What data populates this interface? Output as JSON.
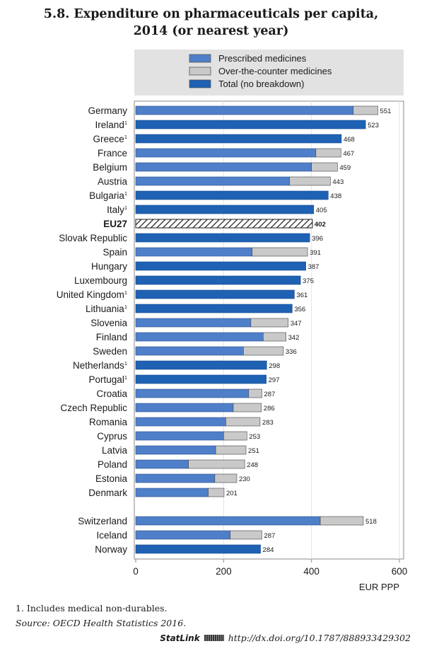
{
  "title": {
    "line1": "5.8. Expenditure on pharmaceuticals per capita,",
    "line2": "2014 (or nearest year)"
  },
  "colors": {
    "prescribed": "#4f7fc9",
    "otc": "#c9c9c9",
    "total": "#1f62b4",
    "legend_bg": "#e2e2e2"
  },
  "chart_data": {
    "type": "bar",
    "orientation": "horizontal",
    "stacked": true,
    "xlabel": "EUR PPP",
    "xlim": [
      0,
      600
    ],
    "xticks": [
      0,
      200,
      400,
      600
    ],
    "legend": {
      "placement": "top",
      "entries": [
        {
          "key": "prescribed",
          "label": "Prescribed medicines"
        },
        {
          "key": "otc",
          "label": "Over-the-counter medicines"
        },
        {
          "key": "total",
          "label": "Total (no breakdown)"
        }
      ]
    },
    "groups": [
      {
        "name": "main",
        "bars": [
          {
            "label": "Germany",
            "note": "",
            "total": 551,
            "prescribed": 495,
            "otc": 56
          },
          {
            "label": "Ireland",
            "note": "1",
            "total": 523
          },
          {
            "label": "Greece",
            "note": "1",
            "total": 468
          },
          {
            "label": "France",
            "note": "",
            "total": 467,
            "prescribed": 410,
            "otc": 57
          },
          {
            "label": "Belgium",
            "note": "",
            "total": 459,
            "prescribed": 400,
            "otc": 59
          },
          {
            "label": "Austria",
            "note": "",
            "total": 443,
            "prescribed": 350,
            "otc": 93
          },
          {
            "label": "Bulgaria",
            "note": "1",
            "total": 438
          },
          {
            "label": "Italy",
            "note": "1",
            "total": 405
          },
          {
            "label": "EU27",
            "note": "",
            "total": 402,
            "hatched": true,
            "bold": true
          },
          {
            "label": "Slovak Republic",
            "note": "",
            "total": 396
          },
          {
            "label": "Spain",
            "note": "",
            "total": 391,
            "prescribed": 265,
            "otc": 126
          },
          {
            "label": "Hungary",
            "note": "",
            "total": 387
          },
          {
            "label": "Luxembourg",
            "note": "",
            "total": 375
          },
          {
            "label": "United Kingdom",
            "note": "1",
            "total": 361
          },
          {
            "label": "Lithuania",
            "note": "1",
            "total": 356
          },
          {
            "label": "Slovenia",
            "note": "",
            "total": 347,
            "prescribed": 262,
            "otc": 85
          },
          {
            "label": "Finland",
            "note": "",
            "total": 342,
            "prescribed": 290,
            "otc": 52
          },
          {
            "label": "Sweden",
            "note": "",
            "total": 336,
            "prescribed": 245,
            "otc": 91
          },
          {
            "label": "Netherlands",
            "note": "1",
            "total": 298
          },
          {
            "label": "Portugal",
            "note": "1",
            "total": 297
          },
          {
            "label": "Croatia",
            "note": "",
            "total": 287,
            "prescribed": 257,
            "otc": 30
          },
          {
            "label": "Czech Republic",
            "note": "",
            "total": 286,
            "prescribed": 222,
            "otc": 64
          },
          {
            "label": "Romania",
            "note": "",
            "total": 283,
            "prescribed": 205,
            "otc": 78
          },
          {
            "label": "Cyprus",
            "note": "",
            "total": 253,
            "prescribed": 200,
            "otc": 53
          },
          {
            "label": "Latvia",
            "note": "",
            "total": 251,
            "prescribed": 182,
            "otc": 69
          },
          {
            "label": "Poland",
            "note": "",
            "total": 248,
            "prescribed": 120,
            "otc": 128
          },
          {
            "label": "Estonia",
            "note": "",
            "total": 230,
            "prescribed": 180,
            "otc": 50
          },
          {
            "label": "Denmark",
            "note": "",
            "total": 201,
            "prescribed": 165,
            "otc": 36
          }
        ]
      },
      {
        "name": "non-eu",
        "bars": [
          {
            "label": "Switzerland",
            "note": "",
            "total": 518,
            "prescribed": 420,
            "otc": 98
          },
          {
            "label": "Iceland",
            "note": "",
            "total": 287,
            "prescribed": 215,
            "otc": 72
          },
          {
            "label": "Norway",
            "note": "",
            "total": 284
          }
        ]
      }
    ]
  },
  "footnote": "1. Includes medical non-durables.",
  "source": {
    "label": "Source:",
    "text": "OECD Health Statistics 2016."
  },
  "statlink": {
    "brand": "StatLink",
    "url": "http://dx.doi.org/10.1787/888933429302"
  }
}
